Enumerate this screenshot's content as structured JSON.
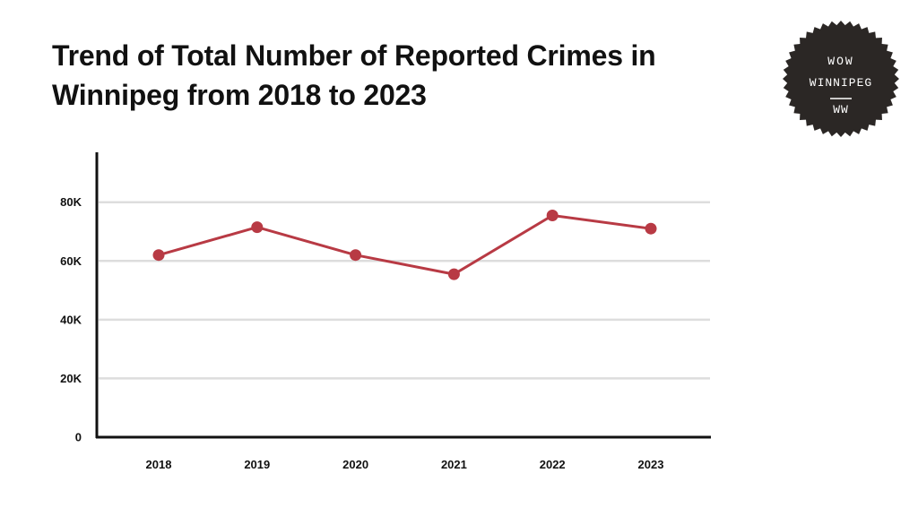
{
  "title_line1": "Trend of Total Number of Reported Crimes in",
  "title_line2": "Winnipeg from 2018 to 2023",
  "logo": {
    "line1": "WOW",
    "line2": "WINNIPEG",
    "line3": "WW",
    "bg_color": "#2b2725",
    "text_color": "#ffffff"
  },
  "chart_data": {
    "type": "line",
    "categories": [
      "2018",
      "2019",
      "2020",
      "2021",
      "2022",
      "2023"
    ],
    "series": [
      {
        "values": [
          62000,
          71500,
          62000,
          55500,
          75500,
          71000
        ],
        "color": "#b83a44"
      }
    ],
    "y_ticks": [
      {
        "value": 0,
        "label": "0"
      },
      {
        "value": 20000,
        "label": "20K"
      },
      {
        "value": 40000,
        "label": "40K"
      },
      {
        "value": 60000,
        "label": "60K"
      },
      {
        "value": 80000,
        "label": "80K"
      }
    ],
    "ylim": [
      0,
      97000
    ],
    "grid": true,
    "grid_color": "#dddddd",
    "legend": "none"
  }
}
